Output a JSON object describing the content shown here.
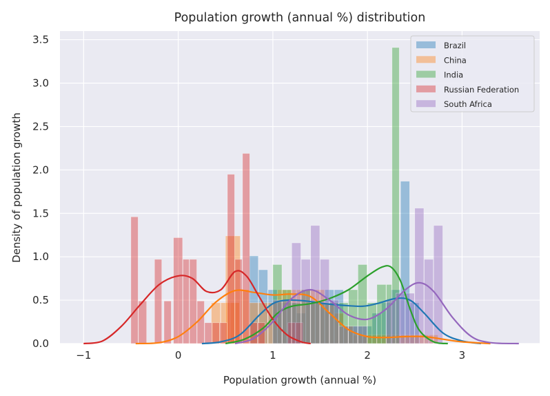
{
  "chart_data": {
    "type": "histogram-kde",
    "title": "Population growth (annual %) distribution",
    "xlabel": "Population growth (annual %)",
    "ylabel": "Density of population growth",
    "xlim": [
      -1.25,
      3.82
    ],
    "ylim": [
      0,
      3.6
    ],
    "xticks": [
      -1,
      0,
      1,
      2,
      3
    ],
    "xtick_labels": [
      "−1",
      "0",
      "1",
      "2",
      "3"
    ],
    "yticks": [
      0.0,
      0.5,
      1.0,
      1.5,
      2.0,
      2.5,
      3.0,
      3.5
    ],
    "ytick_labels": [
      "0.0",
      "0.5",
      "1.0",
      "1.5",
      "2.0",
      "2.5",
      "3.0",
      "3.5"
    ],
    "grid": true,
    "legend_position": "top-right",
    "series": [
      {
        "name": "Brazil",
        "color": "#1f77b4",
        "bins": [
          [
            0.75,
            0.85,
            1.01
          ],
          [
            0.85,
            0.95,
            0.85
          ],
          [
            0.95,
            1.05,
            0.62
          ],
          [
            1.05,
            1.15,
            0.47
          ],
          [
            1.15,
            1.25,
            0.47
          ],
          [
            1.25,
            1.35,
            0.35
          ],
          [
            1.35,
            1.45,
            0.47
          ],
          [
            1.45,
            1.55,
            0.47
          ],
          [
            1.55,
            1.65,
            0.62
          ],
          [
            1.65,
            1.75,
            0.62
          ],
          [
            1.75,
            1.85,
            0.2
          ],
          [
            1.85,
            1.95,
            0.2
          ],
          [
            1.95,
            2.05,
            0.2
          ],
          [
            2.05,
            2.15,
            0.35
          ],
          [
            2.15,
            2.25,
            0.47
          ],
          [
            2.25,
            2.35,
            0.62
          ],
          [
            2.35,
            2.45,
            1.87
          ],
          [
            2.45,
            2.55,
            0.47
          ]
        ],
        "kde": [
          [
            0.25,
            0.0
          ],
          [
            0.45,
            0.02
          ],
          [
            0.65,
            0.1
          ],
          [
            0.85,
            0.32
          ],
          [
            1.0,
            0.46
          ],
          [
            1.15,
            0.5
          ],
          [
            1.35,
            0.49
          ],
          [
            1.55,
            0.46
          ],
          [
            1.75,
            0.44
          ],
          [
            1.95,
            0.43
          ],
          [
            2.1,
            0.46
          ],
          [
            2.3,
            0.52
          ],
          [
            2.45,
            0.5
          ],
          [
            2.6,
            0.35
          ],
          [
            2.8,
            0.12
          ],
          [
            3.0,
            0.03
          ],
          [
            3.2,
            0.0
          ]
        ]
      },
      {
        "name": "China",
        "color": "#ff7f0e",
        "bins": [
          [
            0.35,
            0.45,
            0.47
          ],
          [
            0.45,
            0.55,
            0.47
          ],
          [
            0.55,
            0.65,
            0.47
          ],
          [
            0.5,
            0.66,
            1.24
          ],
          [
            0.66,
            0.75,
            0.62
          ],
          [
            0.75,
            0.85,
            0.47
          ],
          [
            0.85,
            0.95,
            0.47
          ],
          [
            0.95,
            1.05,
            0.47
          ],
          [
            1.05,
            1.15,
            0.62
          ],
          [
            1.15,
            1.25,
            0.62
          ],
          [
            1.25,
            1.35,
            0.62
          ],
          [
            1.35,
            1.45,
            0.62
          ],
          [
            1.45,
            1.55,
            0.62
          ],
          [
            1.55,
            1.65,
            0.47
          ],
          [
            1.65,
            1.75,
            0.35
          ],
          [
            1.75,
            1.85,
            0.2
          ],
          [
            1.85,
            1.95,
            0.1
          ],
          [
            1.95,
            2.05,
            0.1
          ],
          [
            2.05,
            2.15,
            0.1
          ],
          [
            2.15,
            2.25,
            0.1
          ],
          [
            2.25,
            2.35,
            0.1
          ],
          [
            2.35,
            2.45,
            0.1
          ],
          [
            2.45,
            2.55,
            0.1
          ],
          [
            2.55,
            2.65,
            0.1
          ],
          [
            2.65,
            2.75,
            0.1
          ]
        ],
        "kde": [
          [
            -0.45,
            0.0
          ],
          [
            -0.2,
            0.01
          ],
          [
            0.0,
            0.08
          ],
          [
            0.2,
            0.25
          ],
          [
            0.4,
            0.48
          ],
          [
            0.6,
            0.61
          ],
          [
            0.8,
            0.59
          ],
          [
            1.0,
            0.56
          ],
          [
            1.2,
            0.57
          ],
          [
            1.4,
            0.54
          ],
          [
            1.6,
            0.35
          ],
          [
            1.8,
            0.16
          ],
          [
            2.0,
            0.08
          ],
          [
            2.2,
            0.07
          ],
          [
            2.4,
            0.08
          ],
          [
            2.6,
            0.08
          ],
          [
            2.8,
            0.05
          ],
          [
            3.0,
            0.02
          ],
          [
            3.3,
            0.0
          ]
        ]
      },
      {
        "name": "India",
        "color": "#2ca02c",
        "bins": [
          [
            1.0,
            1.1,
            0.91
          ],
          [
            1.1,
            1.2,
            0.62
          ],
          [
            1.2,
            1.3,
            0.47
          ],
          [
            1.3,
            1.4,
            0.62
          ],
          [
            1.4,
            1.5,
            0.47
          ],
          [
            1.5,
            1.6,
            0.47
          ],
          [
            1.6,
            1.7,
            0.47
          ],
          [
            1.7,
            1.8,
            0.47
          ],
          [
            1.8,
            1.9,
            0.62
          ],
          [
            1.9,
            2.0,
            0.91
          ],
          [
            2.0,
            2.1,
            0.47
          ],
          [
            2.1,
            2.2,
            0.68
          ],
          [
            2.2,
            2.26,
            0.68
          ],
          [
            2.26,
            2.34,
            3.41
          ]
        ],
        "kde": [
          [
            0.5,
            0.0
          ],
          [
            0.7,
            0.05
          ],
          [
            0.9,
            0.18
          ],
          [
            1.05,
            0.35
          ],
          [
            1.2,
            0.43
          ],
          [
            1.4,
            0.46
          ],
          [
            1.6,
            0.52
          ],
          [
            1.8,
            0.62
          ],
          [
            2.0,
            0.78
          ],
          [
            2.15,
            0.88
          ],
          [
            2.25,
            0.88
          ],
          [
            2.35,
            0.72
          ],
          [
            2.45,
            0.4
          ],
          [
            2.55,
            0.15
          ],
          [
            2.7,
            0.02
          ],
          [
            2.85,
            0.0
          ]
        ]
      },
      {
        "name": "Russian Federation",
        "color": "#d62728",
        "bins": [
          [
            -0.5,
            -0.42,
            1.46
          ],
          [
            -0.42,
            -0.33,
            0.49
          ],
          [
            -0.25,
            -0.17,
            0.97
          ],
          [
            -0.15,
            -0.07,
            0.49
          ],
          [
            -0.05,
            0.05,
            1.22
          ],
          [
            0.05,
            0.12,
            0.97
          ],
          [
            0.12,
            0.2,
            0.97
          ],
          [
            0.2,
            0.28,
            0.49
          ],
          [
            0.28,
            0.36,
            0.24
          ],
          [
            0.36,
            0.44,
            0.24
          ],
          [
            0.44,
            0.52,
            0.24
          ],
          [
            0.52,
            0.6,
            1.95
          ],
          [
            0.6,
            0.68,
            0.97
          ],
          [
            0.68,
            0.76,
            2.19
          ],
          [
            0.76,
            0.84,
            0.24
          ],
          [
            0.84,
            0.92,
            0.24
          ],
          [
            1.16,
            1.24,
            0.24
          ],
          [
            1.24,
            1.32,
            0.24
          ]
        ],
        "kde": [
          [
            -1.0,
            0.0
          ],
          [
            -0.8,
            0.03
          ],
          [
            -0.6,
            0.2
          ],
          [
            -0.4,
            0.45
          ],
          [
            -0.2,
            0.68
          ],
          [
            0.0,
            0.78
          ],
          [
            0.15,
            0.75
          ],
          [
            0.3,
            0.6
          ],
          [
            0.45,
            0.62
          ],
          [
            0.6,
            0.83
          ],
          [
            0.72,
            0.78
          ],
          [
            0.85,
            0.55
          ],
          [
            1.0,
            0.28
          ],
          [
            1.15,
            0.1
          ],
          [
            1.3,
            0.02
          ],
          [
            1.4,
            0.0
          ]
        ]
      },
      {
        "name": "South Africa",
        "color": "#9467bd",
        "bins": [
          [
            1.0,
            1.1,
            0.5
          ],
          [
            1.1,
            1.2,
            0.5
          ],
          [
            1.2,
            1.3,
            1.16
          ],
          [
            1.3,
            1.4,
            0.97
          ],
          [
            1.4,
            1.5,
            1.36
          ],
          [
            1.5,
            1.6,
            0.97
          ],
          [
            1.6,
            1.7,
            0.5
          ],
          [
            1.7,
            1.8,
            0.2
          ],
          [
            1.8,
            1.9,
            0.2
          ],
          [
            1.9,
            2.0,
            0.2
          ],
          [
            2.2,
            2.3,
            0.5
          ],
          [
            2.3,
            2.4,
            0.58
          ],
          [
            2.4,
            2.5,
            0.58
          ],
          [
            2.5,
            2.6,
            1.56
          ],
          [
            2.6,
            2.7,
            0.97
          ],
          [
            2.7,
            2.8,
            1.36
          ]
        ],
        "kde": [
          [
            0.6,
            0.0
          ],
          [
            0.8,
            0.06
          ],
          [
            1.0,
            0.25
          ],
          [
            1.2,
            0.52
          ],
          [
            1.4,
            0.62
          ],
          [
            1.6,
            0.5
          ],
          [
            1.8,
            0.33
          ],
          [
            2.0,
            0.28
          ],
          [
            2.2,
            0.4
          ],
          [
            2.4,
            0.62
          ],
          [
            2.55,
            0.7
          ],
          [
            2.7,
            0.6
          ],
          [
            2.9,
            0.3
          ],
          [
            3.1,
            0.08
          ],
          [
            3.3,
            0.01
          ],
          [
            3.6,
            0.0
          ]
        ]
      }
    ]
  }
}
